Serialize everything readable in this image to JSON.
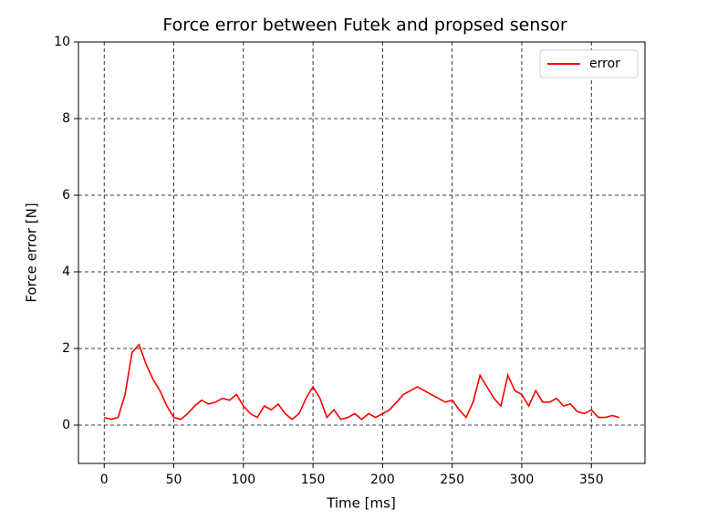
{
  "chart_data": {
    "type": "line",
    "title": "Force error between Futek and propsed sensor",
    "xlabel": "Time [ms]",
    "ylabel": "Force error [N]",
    "x": [
      0,
      5,
      10,
      15,
      20,
      25,
      30,
      35,
      40,
      45,
      50,
      55,
      60,
      65,
      70,
      75,
      80,
      85,
      90,
      95,
      100,
      105,
      110,
      115,
      120,
      125,
      130,
      135,
      140,
      145,
      150,
      155,
      160,
      165,
      170,
      175,
      180,
      185,
      190,
      195,
      200,
      205,
      210,
      215,
      220,
      225,
      230,
      235,
      240,
      245,
      250,
      255,
      260,
      265,
      270,
      275,
      280,
      285,
      290,
      295,
      300,
      305,
      310,
      315,
      320,
      325,
      330,
      335,
      340,
      345,
      350,
      355,
      360,
      365,
      370
    ],
    "series": [
      {
        "name": "error",
        "color": "#ff0000",
        "values": [
          0.2,
          0.15,
          0.2,
          0.8,
          1.9,
          2.1,
          1.6,
          1.2,
          0.9,
          0.5,
          0.2,
          0.15,
          0.3,
          0.5,
          0.65,
          0.55,
          0.6,
          0.7,
          0.65,
          0.8,
          0.5,
          0.3,
          0.2,
          0.5,
          0.4,
          0.55,
          0.3,
          0.15,
          0.3,
          0.7,
          1.0,
          0.7,
          0.2,
          0.4,
          0.15,
          0.2,
          0.3,
          0.15,
          0.3,
          0.2,
          0.3,
          0.4,
          0.6,
          0.8,
          0.9,
          1.0,
          0.9,
          0.8,
          0.7,
          0.6,
          0.65,
          0.4,
          0.2,
          0.6,
          1.3,
          1.0,
          0.7,
          0.5,
          1.3,
          0.9,
          0.8,
          0.5,
          0.9,
          0.6,
          0.6,
          0.7,
          0.5,
          0.55,
          0.35,
          0.3,
          0.4,
          0.2,
          0.2,
          0.25,
          0.2
        ]
      }
    ],
    "xlim": [
      -18.5,
      388.5
    ],
    "xticks": [
      0,
      50,
      100,
      150,
      200,
      250,
      300,
      350
    ],
    "ylim": [
      -1,
      10
    ],
    "yticks": [
      0,
      2,
      4,
      6,
      8,
      10
    ],
    "grid": true,
    "legend": "upper right"
  }
}
